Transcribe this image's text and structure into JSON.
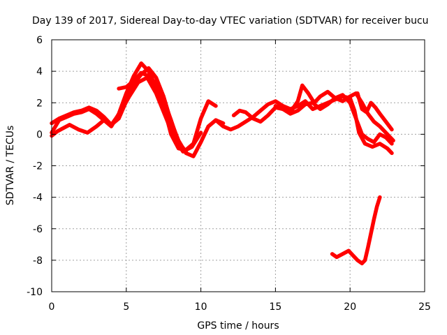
{
  "chart_data": {
    "type": "line",
    "title": "Day 139 of 2017, Sidereal Day-to-day VTEC variation (SDTVAR) for receiver bucu",
    "xlabel": "GPS time / hours",
    "ylabel": "SDTVAR / TECUs",
    "xlim": [
      0,
      25
    ],
    "ylim": [
      -10,
      6
    ],
    "xticks": [
      0,
      5,
      10,
      15,
      20,
      25
    ],
    "yticks": [
      -10,
      -8,
      -6,
      -4,
      -2,
      0,
      2,
      4,
      6
    ],
    "grid": true,
    "color": "#ff0000",
    "series": [
      {
        "name": "satellite track 1",
        "x": [
          0.0,
          0.5,
          1.0,
          1.5,
          2.0,
          2.5,
          3.0,
          3.5,
          4.0,
          4.5,
          5.0,
          5.5,
          6.0,
          6.5,
          7.0,
          7.5,
          8.0,
          8.5,
          9.0,
          9.5,
          10.0,
          10.5,
          11.0
        ],
        "y": [
          0.1,
          0.9,
          1.1,
          1.3,
          1.4,
          1.6,
          1.3,
          0.9,
          0.5,
          1.3,
          2.6,
          3.7,
          4.5,
          4.0,
          3.0,
          1.8,
          0.0,
          -0.9,
          -1.0,
          -0.6,
          1.0,
          2.1,
          1.8
        ]
      },
      {
        "name": "satellite track 2",
        "x": [
          0.0,
          0.5,
          1.0,
          1.5,
          2.0,
          2.5,
          3.0,
          3.5,
          4.0,
          4.5,
          5.0,
          5.5,
          6.0,
          6.5,
          7.0,
          7.5,
          8.0,
          8.5,
          9.0,
          9.5,
          10.0,
          10.5,
          11.0,
          11.5
        ],
        "y": [
          0.7,
          1.0,
          1.2,
          1.4,
          1.5,
          1.7,
          1.5,
          1.1,
          0.6,
          1.0,
          2.1,
          3.2,
          3.8,
          4.2,
          3.6,
          2.4,
          0.8,
          -0.4,
          -1.2,
          -1.4,
          -0.5,
          0.5,
          0.9,
          0.7
        ]
      },
      {
        "name": "satellite track 3",
        "x": [
          0.0,
          0.4,
          0.8,
          1.2,
          1.8,
          2.4,
          3.0,
          3.5,
          4.0,
          4.6,
          5.2,
          5.8,
          6.4,
          7.0,
          7.6,
          8.2,
          8.8,
          9.4,
          10.0
        ],
        "y": [
          -0.1,
          0.2,
          0.4,
          0.6,
          0.3,
          0.1,
          0.5,
          0.9,
          0.6,
          1.4,
          2.4,
          3.3,
          3.6,
          2.6,
          1.2,
          -0.2,
          -1.1,
          -0.8,
          0.1
        ]
      },
      {
        "name": "satellite track 4",
        "x": [
          4.5,
          5.0,
          5.5,
          6.0,
          6.5,
          7.0,
          7.5,
          8.0,
          8.5,
          9.0
        ],
        "y": [
          2.9,
          3.0,
          3.4,
          3.9,
          3.7,
          3.2,
          2.2,
          0.9,
          -0.5,
          -1.1
        ]
      },
      {
        "name": "satellite track 5",
        "x": [
          11.0,
          11.5,
          12.0,
          12.5,
          13.0,
          13.5,
          14.0,
          14.5,
          15.0,
          15.5,
          16.0,
          16.5,
          17.0,
          17.5,
          18.0,
          18.5,
          19.0,
          19.5,
          20.0,
          20.3,
          20.6,
          21.0,
          21.5,
          22.0,
          22.5,
          22.8
        ],
        "y": [
          0.9,
          0.5,
          0.3,
          0.5,
          0.8,
          1.1,
          1.5,
          1.9,
          2.1,
          1.8,
          1.6,
          1.8,
          2.1,
          1.6,
          1.8,
          2.0,
          2.2,
          2.4,
          2.3,
          1.5,
          0.1,
          -0.6,
          -0.8,
          -0.6,
          -0.9,
          -1.2
        ]
      },
      {
        "name": "satellite track 6",
        "x": [
          12.2,
          12.6,
          13.0,
          13.5,
          14.0,
          14.5,
          15.0,
          15.5,
          16.0,
          16.5,
          17.0,
          17.5,
          18.0,
          18.5,
          19.0,
          19.5,
          20.0,
          20.4,
          20.8,
          21.2,
          21.6,
          22.0,
          22.4,
          22.8
        ],
        "y": [
          1.2,
          1.5,
          1.4,
          1.0,
          0.8,
          1.2,
          1.7,
          1.6,
          1.3,
          1.5,
          1.9,
          2.0,
          1.6,
          1.9,
          2.3,
          2.5,
          2.0,
          1.0,
          0.0,
          -0.3,
          -0.5,
          0.0,
          -0.2,
          -0.6
        ]
      },
      {
        "name": "satellite track 7",
        "x": [
          15.0,
          15.5,
          16.0,
          16.5,
          16.8,
          17.2,
          17.6,
          18.0,
          18.5,
          19.0,
          19.5,
          20.0,
          20.4,
          20.8,
          21.2,
          21.6,
          22.0,
          22.5,
          22.9
        ],
        "y": [
          1.8,
          1.6,
          1.4,
          2.1,
          3.1,
          2.6,
          2.0,
          2.4,
          2.7,
          2.3,
          2.1,
          2.4,
          2.6,
          2.0,
          1.3,
          0.8,
          0.5,
          0.0,
          -0.4
        ]
      },
      {
        "name": "satellite track 8",
        "x": [
          20.5,
          20.8,
          21.1,
          21.4,
          21.7,
          22.0,
          22.4,
          22.8
        ],
        "y": [
          2.6,
          1.6,
          1.4,
          2.0,
          1.7,
          1.3,
          0.8,
          0.3
        ]
      },
      {
        "name": "satellite track 9",
        "x": [
          18.8,
          19.1,
          19.5,
          19.9,
          20.2,
          20.5,
          20.8,
          21.0,
          21.2,
          21.4,
          21.6,
          21.8,
          22.0
        ],
        "y": [
          -7.6,
          -7.8,
          -7.6,
          -7.4,
          -7.7,
          -8.0,
          -8.2,
          -8.0,
          -7.2,
          -6.3,
          -5.4,
          -4.6,
          -4.0
        ]
      }
    ]
  }
}
